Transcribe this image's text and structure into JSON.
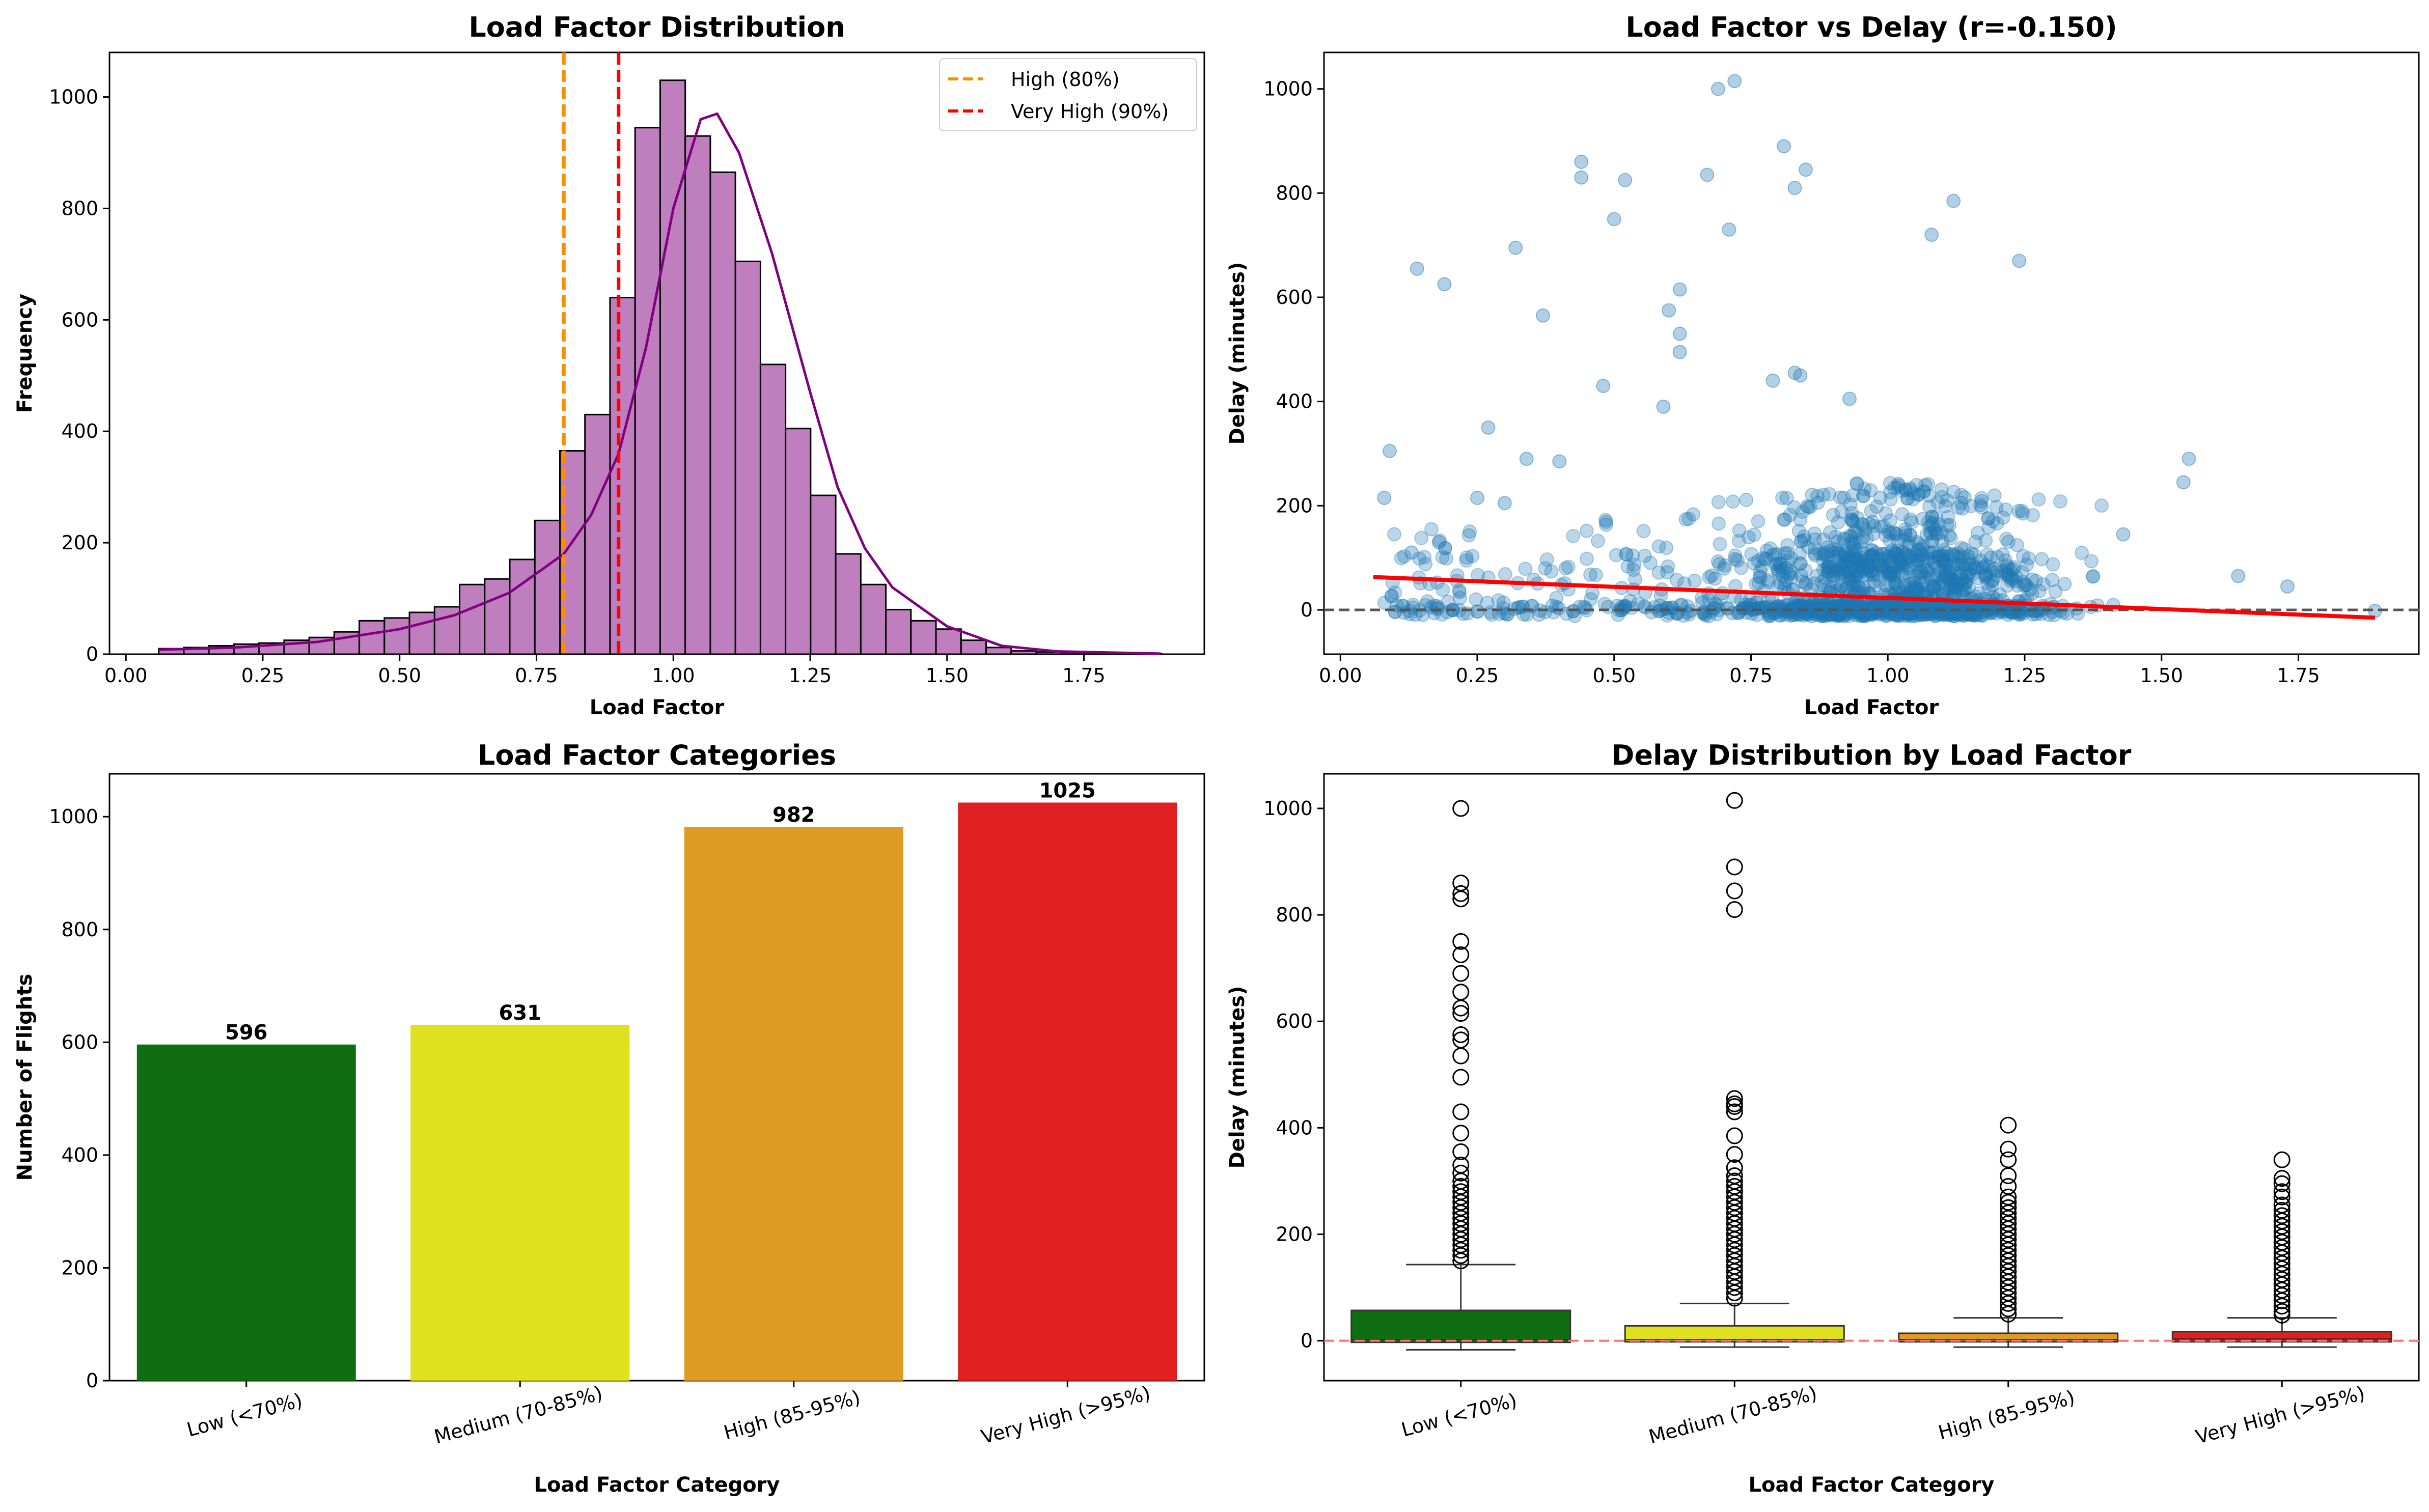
{
  "chart_data": [
    {
      "type": "histogram",
      "title": "Load Factor Distribution",
      "xlabel": "Load Factor",
      "ylabel": "Frequency",
      "xlim": [
        -0.03,
        1.97
      ],
      "ylim": [
        0,
        1080
      ],
      "xticks": [
        0.0,
        0.25,
        0.5,
        0.75,
        1.0,
        1.25,
        1.5,
        1.75
      ],
      "xtick_labels": [
        "0.00",
        "0.25",
        "0.50",
        "0.75",
        "1.00",
        "1.25",
        "1.50",
        "1.75"
      ],
      "yticks": [
        0,
        200,
        400,
        600,
        800,
        1000
      ],
      "bin_start": 0.06,
      "bin_width": 0.0458,
      "counts": [
        10,
        12,
        15,
        18,
        20,
        25,
        30,
        40,
        60,
        65,
        75,
        85,
        125,
        135,
        170,
        240,
        365,
        430,
        640,
        945,
        1030,
        930,
        865,
        705,
        520,
        405,
        285,
        180,
        125,
        80,
        60,
        45,
        25,
        12,
        6,
        4,
        3,
        2,
        2,
        1
      ],
      "bar_color": "#bf7fbf",
      "kde_color": "#800080",
      "kde": [
        [
          0.06,
          8
        ],
        [
          0.2,
          12
        ],
        [
          0.35,
          22
        ],
        [
          0.5,
          45
        ],
        [
          0.6,
          70
        ],
        [
          0.7,
          110
        ],
        [
          0.8,
          180
        ],
        [
          0.85,
          250
        ],
        [
          0.9,
          360
        ],
        [
          0.95,
          550
        ],
        [
          1.0,
          800
        ],
        [
          1.05,
          960
        ],
        [
          1.08,
          970
        ],
        [
          1.12,
          900
        ],
        [
          1.18,
          720
        ],
        [
          1.25,
          470
        ],
        [
          1.3,
          300
        ],
        [
          1.35,
          190
        ],
        [
          1.4,
          120
        ],
        [
          1.5,
          50
        ],
        [
          1.6,
          15
        ],
        [
          1.7,
          5
        ],
        [
          1.89,
          1
        ]
      ],
      "vlines": [
        {
          "x": 0.8,
          "color": "#ff8c00",
          "label": "High (80%)"
        },
        {
          "x": 0.9,
          "color": "#ff0000",
          "label": "Very High (90%)"
        }
      ],
      "legend_position": "top-right"
    },
    {
      "type": "scatter",
      "title": "Load Factor vs Delay (r=-0.150)",
      "xlabel": "Load Factor",
      "ylabel": "Delay (minutes)",
      "xlim": [
        -0.03,
        1.97
      ],
      "ylim": [
        -85,
        1070
      ],
      "xticks": [
        0.0,
        0.25,
        0.5,
        0.75,
        1.0,
        1.25,
        1.5,
        1.75
      ],
      "xtick_labels": [
        "0.00",
        "0.25",
        "0.50",
        "0.75",
        "1.00",
        "1.25",
        "1.50",
        "1.75"
      ],
      "yticks": [
        0,
        200,
        400,
        600,
        800,
        1000
      ],
      "point_color": "#1f77b4",
      "outliers": [
        [
          0.69,
          1000
        ],
        [
          0.72,
          1015
        ],
        [
          0.81,
          890
        ],
        [
          0.83,
          810
        ],
        [
          0.85,
          845
        ],
        [
          0.44,
          860
        ],
        [
          0.44,
          830
        ],
        [
          0.52,
          825
        ],
        [
          0.67,
          835
        ],
        [
          0.5,
          750
        ],
        [
          0.71,
          730
        ],
        [
          1.08,
          720
        ],
        [
          1.12,
          785
        ],
        [
          1.24,
          670
        ],
        [
          0.32,
          695
        ],
        [
          0.14,
          655
        ],
        [
          0.19,
          625
        ],
        [
          0.37,
          565
        ],
        [
          0.6,
          575
        ],
        [
          0.62,
          615
        ],
        [
          0.62,
          530
        ],
        [
          0.62,
          495
        ],
        [
          0.48,
          430
        ],
        [
          0.59,
          390
        ],
        [
          0.79,
          440
        ],
        [
          0.83,
          455
        ],
        [
          0.84,
          450
        ],
        [
          0.93,
          405
        ],
        [
          0.27,
          350
        ],
        [
          0.09,
          305
        ],
        [
          0.08,
          215
        ],
        [
          0.25,
          215
        ],
        [
          0.13,
          110
        ],
        [
          0.18,
          130
        ],
        [
          0.3,
          205
        ],
        [
          0.34,
          290
        ],
        [
          0.4,
          285
        ],
        [
          1.55,
          290
        ],
        [
          1.54,
          245
        ],
        [
          1.43,
          145
        ],
        [
          1.73,
          45
        ],
        [
          1.64,
          65
        ],
        [
          1.89,
          -2
        ]
      ],
      "trend": {
        "x": [
          0.06,
          1.89
        ],
        "y": [
          63,
          -15
        ],
        "color": "#ff0000"
      },
      "hline": {
        "y": 0,
        "color": "#555555"
      }
    },
    {
      "type": "bar",
      "title": "Load Factor Categories",
      "xlabel": "Load Factor Category",
      "ylabel": "Number of Flights",
      "ylim": [
        0,
        1076
      ],
      "yticks": [
        0,
        200,
        400,
        600,
        800,
        1000
      ],
      "categories": [
        "Low (<70%)",
        "Medium (70-85%)",
        "High (85-95%)",
        "Very High (>95%)"
      ],
      "values": [
        596,
        631,
        982,
        1025
      ],
      "value_labels": [
        "596",
        "631",
        "982",
        "1025"
      ],
      "colors": [
        "#0f6e11",
        "#dfe11f",
        "#df9b22",
        "#df1f20"
      ]
    },
    {
      "type": "box",
      "title": "Delay Distribution by Load Factor",
      "xlabel": "Load Factor Category",
      "ylabel": "Delay (minutes)",
      "ylim": [
        -75,
        1065
      ],
      "yticks": [
        0,
        200,
        400,
        600,
        800,
        1000
      ],
      "categories": [
        "Low (<70%)",
        "Medium (70-85%)",
        "High (85-95%)",
        "Very High (>95%)"
      ],
      "colors": [
        "#0f6e11",
        "#dfe11f",
        "#df9b22",
        "#df1f20"
      ],
      "boxes": [
        {
          "whisker_low": -17,
          "q1": -3,
          "median": 2,
          "q3": 57,
          "whisker_high": 143,
          "outliers": [
            1000,
            860,
            840,
            830,
            750,
            725,
            690,
            655,
            625,
            615,
            575,
            565,
            535,
            495,
            430,
            390,
            355,
            330,
            315,
            300,
            290,
            280,
            270,
            260,
            250,
            240,
            230,
            220,
            210,
            200,
            190,
            180,
            170,
            160,
            150
          ]
        },
        {
          "whisker_low": -12,
          "q1": -2,
          "median": 2,
          "q3": 28,
          "whisker_high": 70,
          "outliers": [
            1015,
            890,
            845,
            810,
            455,
            445,
            440,
            430,
            385,
            350,
            325,
            310,
            300,
            290,
            280,
            270,
            260,
            250,
            240,
            230,
            220,
            210,
            200,
            190,
            180,
            170,
            160,
            150,
            140,
            130,
            120,
            110,
            100,
            90,
            80
          ]
        },
        {
          "whisker_low": -12,
          "q1": -2,
          "median": 2,
          "q3": 14,
          "whisker_high": 43,
          "outliers": [
            405,
            360,
            340,
            310,
            290,
            270,
            260,
            250,
            240,
            230,
            220,
            210,
            200,
            190,
            180,
            170,
            160,
            150,
            140,
            130,
            120,
            110,
            100,
            90,
            80,
            70,
            60,
            50
          ]
        },
        {
          "whisker_low": -12,
          "q1": -2,
          "median": 3,
          "q3": 17,
          "whisker_high": 43,
          "outliers": [
            340,
            305,
            295,
            280,
            270,
            255,
            245,
            235,
            225,
            215,
            205,
            195,
            185,
            175,
            165,
            155,
            145,
            135,
            125,
            115,
            105,
            95,
            85,
            75,
            65,
            55,
            48
          ]
        }
      ],
      "hline": {
        "y": 0,
        "color": "#ff7070"
      }
    }
  ]
}
